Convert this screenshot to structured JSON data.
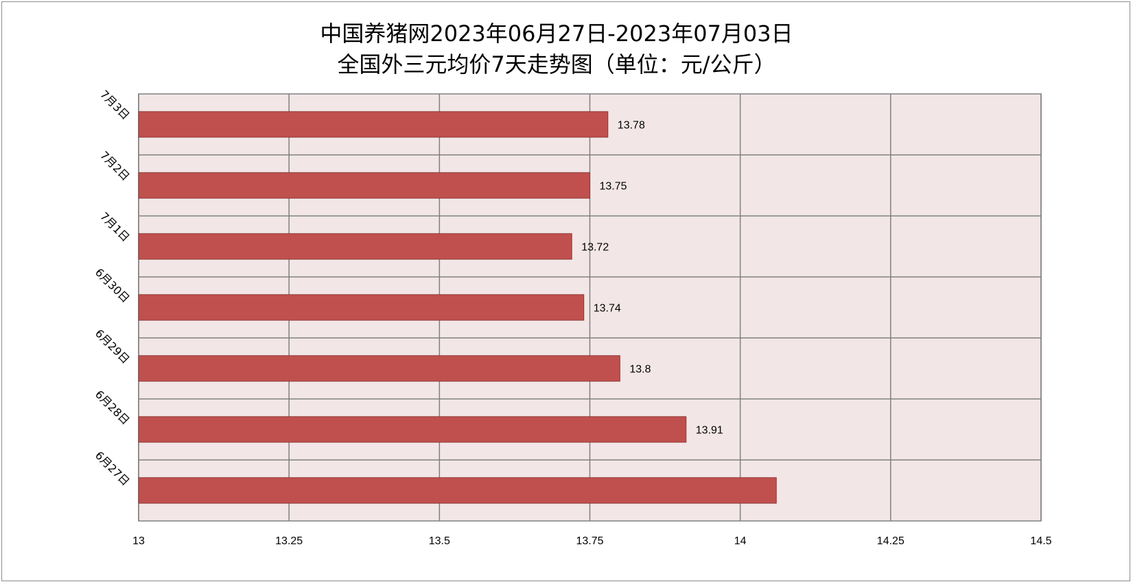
{
  "chart_data": {
    "type": "bar",
    "orientation": "horizontal",
    "title": "中国养猪网2023年06月27日-2023年07月03日",
    "subtitle": "全国外三元均价7天走势图（单位：元/公斤）",
    "categories": [
      "7月3日",
      "7月2日",
      "7月1日",
      "6月30日",
      "6月29日",
      "6月28日",
      "6月27日"
    ],
    "values": [
      13.78,
      13.75,
      13.72,
      13.74,
      13.8,
      13.91,
      14.06
    ],
    "value_labels": [
      "13.78",
      "13.75",
      "13.72",
      "13.74",
      "13.8",
      "13.91",
      ""
    ],
    "xlim": [
      13,
      14.5
    ],
    "x_ticks": [
      13,
      13.25,
      13.5,
      13.75,
      14,
      14.25,
      14.5
    ],
    "x_tick_labels": [
      "13",
      "13.25",
      "13.5",
      "13.75",
      "14",
      "14.25",
      "14.5"
    ],
    "xlabel": "",
    "ylabel": "",
    "grid": true,
    "legend": "none",
    "colors": {
      "bar_fill": "#C0504D",
      "bar_stroke": "#8C3836",
      "plot_background": "#F2E6E6",
      "grid": "#808080"
    }
  }
}
